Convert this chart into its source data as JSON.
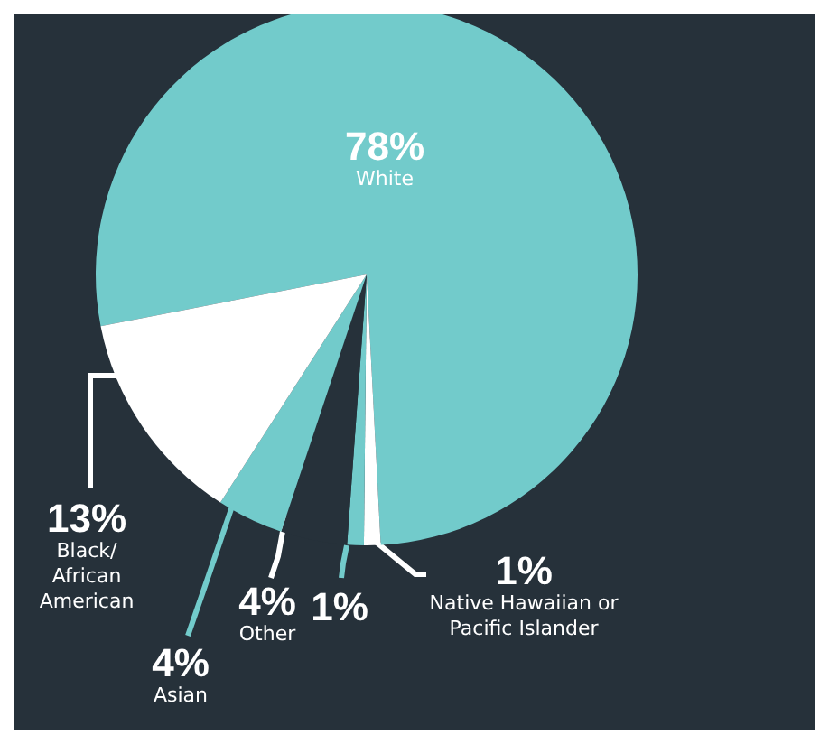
{
  "chart_data": {
    "type": "pie",
    "categories": [
      "White",
      "Native Hawaiian or Pacific Islander",
      null,
      "Other",
      "Asian",
      "Black/ African American"
    ],
    "values": [
      78,
      1,
      1,
      4,
      4,
      13
    ],
    "colors": [
      "#72cbcb",
      "#ffffff",
      "#72cbcb",
      "#26313a",
      "#72cbcb",
      "#ffffff"
    ],
    "value_labels": [
      "78%",
      "1%",
      "1%",
      "4%",
      "4%",
      "13%"
    ]
  }
}
